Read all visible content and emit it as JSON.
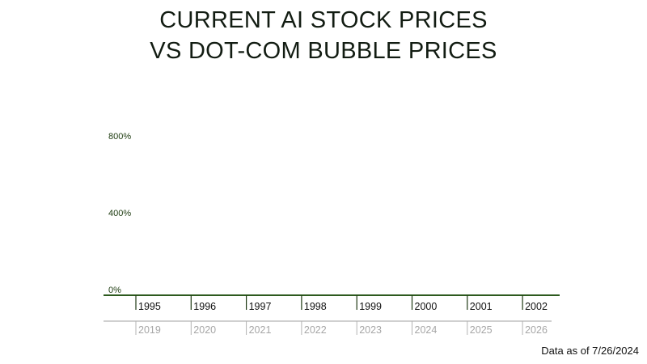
{
  "title": {
    "line1": "CURRENT AI STOCK PRICES",
    "line2": "VS DOT-COM BUBBLE PRICES"
  },
  "footnote": "Data as of 7/26/2024",
  "colors": {
    "baseline": "#2d5a1e",
    "grid": "#e6e6e6",
    "primary_tick": "#1f3a14",
    "secondary_axis": "#b3b3b3",
    "secondary_text": "#a6a6a6",
    "ylabel_text": "#1c3a0e"
  },
  "chart_data": {
    "type": "line",
    "title": "CURRENT AI STOCK PRICES VS DOT-COM BUBBLE PRICES",
    "ylim": [
      0,
      800
    ],
    "yticks": [
      {
        "value": 0,
        "label": "0%"
      },
      {
        "value": 400,
        "label": "400%"
      },
      {
        "value": 800,
        "label": "800%"
      }
    ],
    "x_primary": [
      "1995",
      "1996",
      "1997",
      "1998",
      "1999",
      "2000",
      "2001",
      "2002"
    ],
    "x_secondary": [
      "2019",
      "2020",
      "2021",
      "2022",
      "2023",
      "2024",
      "2025",
      "2026"
    ],
    "series": [],
    "grid": true,
    "legend": "none"
  }
}
